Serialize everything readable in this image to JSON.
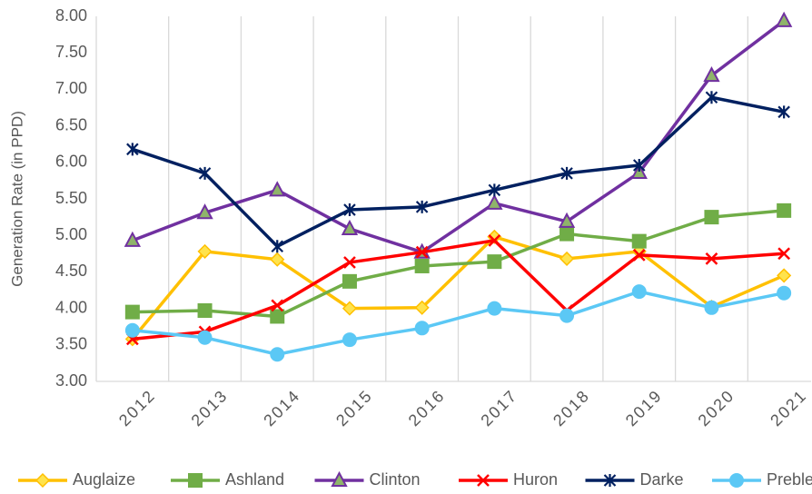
{
  "chart_data": {
    "type": "line",
    "y_label": "Generation Rate (in PPD)",
    "categories": [
      "2012",
      "2013",
      "2014",
      "2015",
      "2016",
      "2017",
      "2018",
      "2019",
      "2020",
      "2021"
    ],
    "ylim": [
      3,
      8
    ],
    "yticks": [
      {
        "value": 3,
        "label": "3.00"
      },
      {
        "value": 3.5,
        "label": "3.50"
      },
      {
        "value": 4,
        "label": "4.00"
      },
      {
        "value": 4.5,
        "label": "4.50"
      },
      {
        "value": 5,
        "label": "5.00"
      },
      {
        "value": 5.5,
        "label": "5.50"
      },
      {
        "value": 6,
        "label": "6.00"
      },
      {
        "value": 6.5,
        "label": "6.50"
      },
      {
        "value": 7,
        "label": "7.00"
      },
      {
        "value": 7.5,
        "label": "7.50"
      },
      {
        "value": 8,
        "label": "8.00"
      }
    ],
    "grid": "x",
    "legend": "bottom",
    "series": [
      {
        "name": "Auglaize",
        "color": "#FFC000",
        "marker": "diamond",
        "marker_color": "#FFE34D",
        "values": [
          3.58,
          4.78,
          4.67,
          4.0,
          4.01,
          4.98,
          4.68,
          4.78,
          4.02,
          4.45
        ]
      },
      {
        "name": "Ashland",
        "color": "#70AD47",
        "marker": "square",
        "marker_color": "#70AD47",
        "values": [
          3.95,
          3.97,
          3.89,
          4.37,
          4.58,
          4.64,
          5.02,
          4.92,
          5.25,
          5.34
        ]
      },
      {
        "name": "Clinton",
        "color": "#7030A0",
        "marker": "triangle",
        "marker_color": "#8FB46A",
        "values": [
          4.93,
          5.31,
          5.62,
          5.09,
          4.77,
          5.44,
          5.19,
          5.86,
          7.19,
          7.94
        ]
      },
      {
        "name": "Huron",
        "color": "#FF0000",
        "marker": "x",
        "marker_color": "#FF0000",
        "values": [
          3.58,
          3.68,
          4.04,
          4.63,
          4.77,
          4.93,
          3.97,
          4.73,
          4.68,
          4.75
        ]
      },
      {
        "name": "Darke",
        "color": "#002060",
        "marker": "star",
        "marker_color": "#002060",
        "values": [
          6.18,
          5.85,
          4.85,
          5.35,
          5.39,
          5.62,
          5.85,
          5.96,
          6.89,
          6.69
        ]
      },
      {
        "name": "Preble",
        "color": "#5BC8F5",
        "marker": "circle",
        "marker_color": "#5BC8F5",
        "values": [
          3.7,
          3.6,
          3.37,
          3.57,
          3.73,
          4.0,
          3.9,
          4.23,
          4.01,
          4.21
        ]
      }
    ]
  }
}
